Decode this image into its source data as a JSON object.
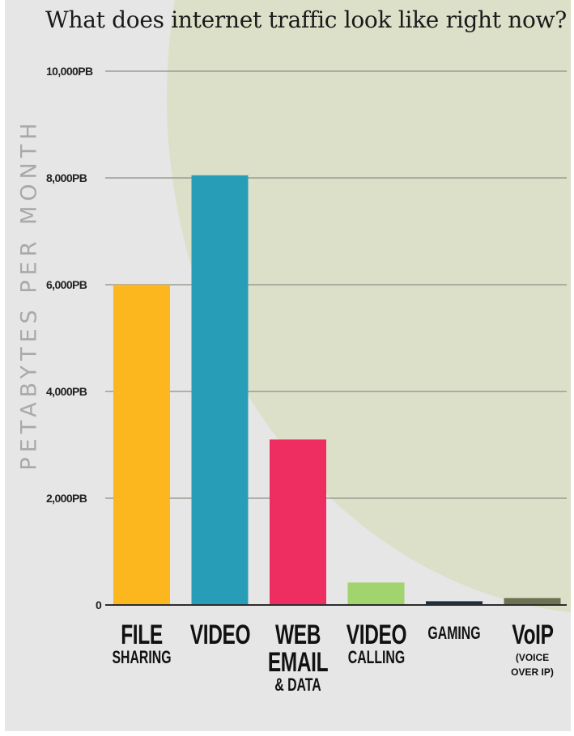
{
  "title": "What does internet traffic look like right now?",
  "chart_data": {
    "type": "bar",
    "ylabel": "PETABYTES PER MONTH",
    "ylim": [
      0,
      10000
    ],
    "yticks": [
      {
        "value": 0,
        "label": "0"
      },
      {
        "value": 2000,
        "label": "2,000PB"
      },
      {
        "value": 4000,
        "label": "4,000PB"
      },
      {
        "value": 6000,
        "label": "6,000PB"
      },
      {
        "value": 8000,
        "label": "8,000PB"
      },
      {
        "value": 10000,
        "label": "10,000PB"
      }
    ],
    "grid": true,
    "categories": [
      "FILE SHARING",
      "VIDEO",
      "WEB EMAIL & DATA",
      "VIDEO CALLING",
      "GAMING",
      "VoIP (VOICE OVER IP)"
    ],
    "values": [
      6000,
      8050,
      3100,
      420,
      70,
      130
    ],
    "colors": [
      "#fbb71d",
      "#279db7",
      "#ee2e61",
      "#a1d36e",
      "#1d2f48",
      "#6c7353"
    ]
  },
  "category_labels": [
    {
      "main": [
        "FILE"
      ],
      "sub": [
        "SHARING"
      ],
      "small": []
    },
    {
      "main": [
        "VIDEO"
      ],
      "sub": [],
      "small": []
    },
    {
      "main": [
        "WEB",
        "EMAIL"
      ],
      "sub": [
        "& DATA"
      ],
      "small": []
    },
    {
      "main": [
        "VIDEO"
      ],
      "sub": [
        "CALLING"
      ],
      "small": []
    },
    {
      "main": [],
      "sub": [
        "GAMING"
      ],
      "small": []
    },
    {
      "main": [
        "VoIP"
      ],
      "sub": [],
      "small": [
        "(VOICE",
        "OVER IP)"
      ]
    }
  ]
}
